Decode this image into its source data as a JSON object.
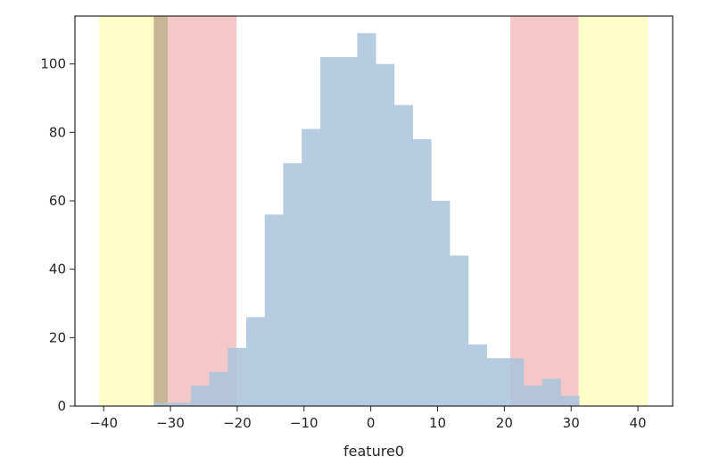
{
  "chart_data": {
    "type": "bar",
    "xlabel": "feature0",
    "ylabel": "",
    "xlim": [
      -44.3,
      45.2
    ],
    "ylim": [
      0,
      114
    ],
    "grid": false,
    "bin_width": 2.77,
    "series": [
      {
        "kind": "histogram",
        "color": "#a9c4dc",
        "bins": [
          {
            "left": -32.5,
            "count": 1
          },
          {
            "left": -29.73,
            "count": 1
          },
          {
            "left": -26.96,
            "count": 6
          },
          {
            "left": -24.19,
            "count": 10
          },
          {
            "left": -21.42,
            "count": 17
          },
          {
            "left": -18.65,
            "count": 26
          },
          {
            "left": -15.88,
            "count": 56
          },
          {
            "left": -13.11,
            "count": 71
          },
          {
            "left": -10.34,
            "count": 81
          },
          {
            "left": -7.57,
            "count": 102
          },
          {
            "left": -4.8,
            "count": 102
          },
          {
            "left": -2.03,
            "count": 109
          },
          {
            "left": 0.74,
            "count": 100
          },
          {
            "left": 3.51,
            "count": 88
          },
          {
            "left": 6.28,
            "count": 78
          },
          {
            "left": 9.05,
            "count": 60
          },
          {
            "left": 11.82,
            "count": 44
          },
          {
            "left": 14.59,
            "count": 18
          },
          {
            "left": 17.36,
            "count": 14
          },
          {
            "left": 20.13,
            "count": 14
          },
          {
            "left": 22.9,
            "count": 6
          },
          {
            "left": 25.67,
            "count": 8
          },
          {
            "left": 28.44,
            "count": 3
          }
        ]
      }
    ],
    "spans": [
      {
        "from": -40.7,
        "to": -20.1,
        "color": "#fffec8"
      },
      {
        "from": -30.4,
        "to": -20.1,
        "color": "#f6c7c7"
      },
      {
        "from": -32.5,
        "to": -30.4,
        "color": "#c7b694"
      },
      {
        "from": 20.9,
        "to": 41.5,
        "color": "#fffec8"
      },
      {
        "from": 20.9,
        "to": 31.1,
        "color": "#f6c7c7"
      }
    ],
    "x_ticks": [
      {
        "value": -40,
        "label": "−40"
      },
      {
        "value": -30,
        "label": "−30"
      },
      {
        "value": -20,
        "label": "−20"
      },
      {
        "value": -10,
        "label": "−10"
      },
      {
        "value": 0,
        "label": "0"
      },
      {
        "value": 10,
        "label": "10"
      },
      {
        "value": 20,
        "label": "20"
      },
      {
        "value": 30,
        "label": "30"
      },
      {
        "value": 40,
        "label": "40"
      }
    ],
    "y_ticks": [
      {
        "value": 0,
        "label": "0"
      },
      {
        "value": 20,
        "label": "20"
      },
      {
        "value": 40,
        "label": "40"
      },
      {
        "value": 60,
        "label": "60"
      },
      {
        "value": 80,
        "label": "80"
      },
      {
        "value": 100,
        "label": "100"
      }
    ]
  }
}
